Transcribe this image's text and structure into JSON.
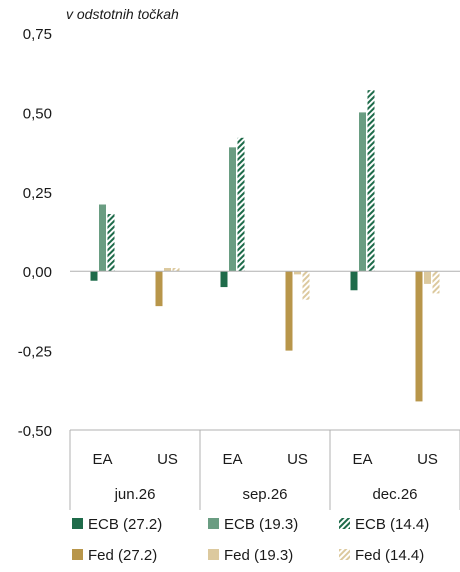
{
  "colors": {
    "ecb_dark": "#1e6b4a",
    "ecb_light": "#6a9d82",
    "fed_dark": "#b8964a",
    "fed_light": "#dcc99e",
    "axis": "#b0b0b0"
  },
  "chart_data": {
    "type": "bar",
    "annotation": "v odstotnih točkah",
    "ylim": [
      -0.5,
      0.75
    ],
    "yticks": [
      "0,75",
      "0,50",
      "0,25",
      "0,00",
      "-0,25",
      "-0,50"
    ],
    "ytick_values": [
      0.75,
      0.5,
      0.25,
      0.0,
      -0.25,
      -0.5
    ],
    "groups": [
      {
        "label": "jun.26",
        "subgroups": [
          {
            "label": "EA",
            "values": [
              -0.03,
              0.21,
              0.18
            ]
          },
          {
            "label": "US",
            "values": [
              -0.11,
              0.01,
              0.01
            ]
          }
        ]
      },
      {
        "label": "sep.26",
        "subgroups": [
          {
            "label": "EA",
            "values": [
              -0.05,
              0.39,
              0.42
            ]
          },
          {
            "label": "US",
            "values": [
              -0.25,
              -0.01,
              -0.09
            ]
          }
        ]
      },
      {
        "label": "dec.26",
        "subgroups": [
          {
            "label": "EA",
            "values": [
              -0.06,
              0.5,
              0.57
            ]
          },
          {
            "label": "US",
            "values": [
              -0.41,
              -0.04,
              -0.07
            ]
          }
        ]
      }
    ],
    "legend": [
      {
        "name": "ECB (27.2)",
        "style": "ecb_dark"
      },
      {
        "name": "ECB (19.3)",
        "style": "ecb_light"
      },
      {
        "name": "ECB (14.4)",
        "style": "ecb_hatch"
      },
      {
        "name": "Fed (27.2)",
        "style": "fed_dark"
      },
      {
        "name": "Fed (19.3)",
        "style": "fed_light"
      },
      {
        "name": "Fed (14.4)",
        "style": "fed_hatch"
      }
    ],
    "legend_position": "bottom"
  }
}
